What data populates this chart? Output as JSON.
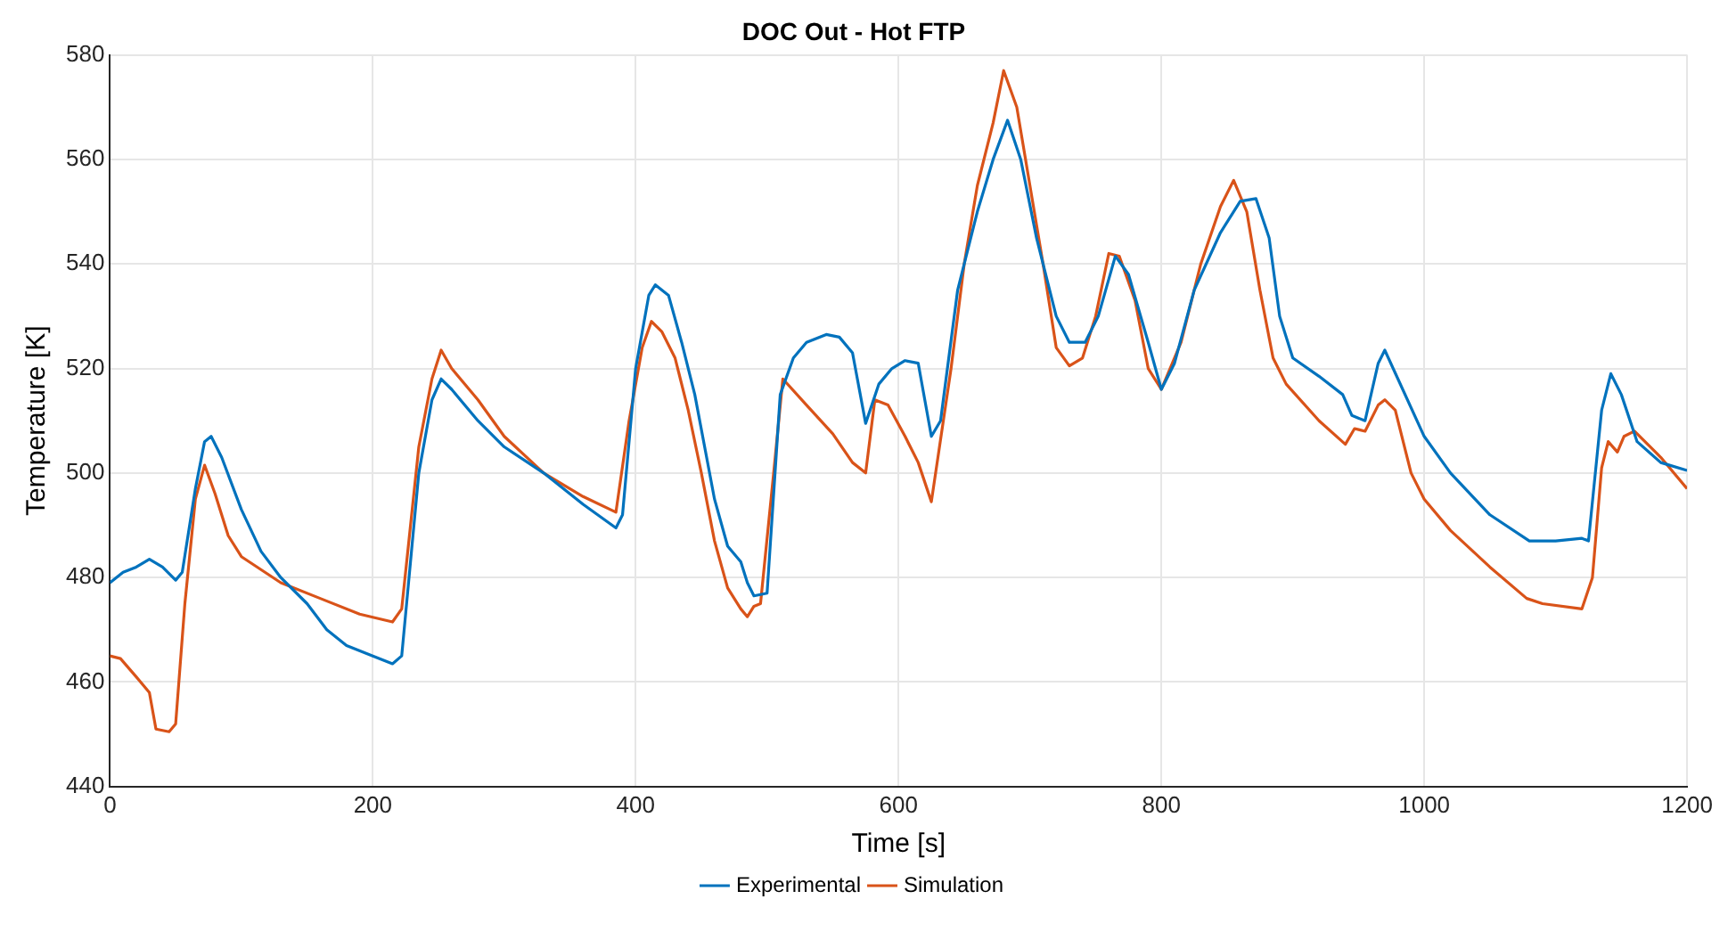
{
  "chart_data": {
    "type": "line",
    "title": "DOC Out - Hot FTP",
    "xlabel": "Time [s]",
    "ylabel": "Temperature [K]",
    "xlim": [
      0,
      1200
    ],
    "xticks": [
      0,
      200,
      400,
      600,
      800,
      1000,
      1200
    ],
    "ylim": [
      440,
      580
    ],
    "yticks": [
      440,
      460,
      480,
      500,
      520,
      540,
      560,
      580
    ],
    "grid": true,
    "legend": "bottom",
    "marker": "none",
    "line_style": "solid",
    "series": [
      {
        "name": "Experimental",
        "color": "#0072bd",
        "x": [
          0,
          10,
          20,
          30,
          40,
          50,
          55,
          65,
          72,
          77,
          85,
          100,
          115,
          130,
          150,
          165,
          180,
          200,
          215,
          222,
          235,
          245,
          252,
          260,
          280,
          300,
          330,
          360,
          385,
          390,
          400,
          410,
          415,
          425,
          435,
          445,
          460,
          470,
          480,
          485,
          490,
          500,
          510,
          520,
          530,
          545,
          555,
          565,
          575,
          585,
          595,
          605,
          615,
          625,
          632,
          645,
          660,
          672,
          683,
          693,
          705,
          720,
          730,
          742,
          752,
          765,
          775,
          790,
          800,
          810,
          825,
          845,
          860,
          872,
          882,
          890,
          900,
          920,
          938,
          945,
          955,
          965,
          970,
          980,
          1000,
          1020,
          1050,
          1080,
          1100,
          1120,
          1125,
          1135,
          1142,
          1150,
          1162,
          1180,
          1200
        ],
        "values": [
          479,
          481,
          482,
          483.5,
          482,
          479.5,
          481,
          497,
          506,
          507,
          503,
          493,
          485,
          480,
          475,
          470,
          467,
          465,
          463.5,
          465,
          500,
          514,
          518,
          516,
          510,
          505,
          500,
          494,
          489.5,
          492,
          520,
          534,
          536,
          534,
          525,
          515,
          495,
          486,
          483,
          479,
          476.5,
          477,
          515,
          522,
          525,
          526.5,
          526,
          523,
          509.5,
          517,
          520,
          521.5,
          521,
          507,
          510,
          535,
          550,
          560,
          567.5,
          560,
          545,
          530,
          525,
          525,
          530,
          541.5,
          538,
          525,
          516,
          521,
          535,
          546,
          552,
          552.5,
          545,
          530,
          522,
          518.5,
          515,
          511,
          510,
          521,
          523.5,
          518,
          507,
          500,
          492,
          487,
          487,
          487.5,
          487,
          512,
          519,
          515,
          506,
          502,
          500.5
        ]
      },
      {
        "name": "Simulation",
        "color": "#d95319",
        "x": [
          0,
          8,
          20,
          30,
          35,
          45,
          50,
          57,
          65,
          72,
          80,
          90,
          100,
          130,
          160,
          190,
          215,
          222,
          235,
          245,
          252,
          260,
          280,
          300,
          330,
          360,
          385,
          395,
          405,
          412,
          420,
          430,
          440,
          450,
          460,
          470,
          480,
          485,
          490,
          495,
          505,
          512,
          530,
          550,
          565,
          575,
          582,
          592,
          605,
          615,
          625,
          640,
          650,
          660,
          672,
          680,
          690,
          700,
          710,
          720,
          730,
          740,
          750,
          760,
          768,
          780,
          790,
          800,
          815,
          830,
          845,
          855,
          865,
          875,
          885,
          895,
          920,
          940,
          947,
          955,
          965,
          970,
          978,
          990,
          1000,
          1020,
          1050,
          1078,
          1090,
          1120,
          1128,
          1135,
          1140,
          1147,
          1152,
          1160,
          1180,
          1200
        ],
        "values": [
          465,
          464.5,
          461,
          458,
          451,
          450.5,
          452,
          475,
          495,
          501.5,
          496,
          488,
          484,
          479,
          476,
          473,
          471.5,
          474,
          505,
          518,
          523.5,
          520,
          514,
          507,
          500,
          495.5,
          492.5,
          510,
          524,
          529,
          527,
          522,
          512,
          500,
          487,
          478,
          474,
          472.5,
          474.5,
          475,
          500,
          518,
          513,
          507.5,
          502,
          500,
          514,
          513,
          507,
          502,
          494.5,
          520,
          540,
          555,
          567,
          577,
          570,
          555,
          540,
          524,
          520.5,
          522,
          530,
          542,
          541.5,
          533,
          520,
          516,
          525,
          540,
          551,
          556,
          550,
          535,
          522,
          517,
          510,
          505.5,
          508.5,
          508,
          513,
          514,
          512,
          500,
          495,
          489,
          482,
          476,
          475,
          474,
          480,
          501,
          506,
          504,
          507,
          508,
          503,
          497
        ]
      }
    ]
  }
}
